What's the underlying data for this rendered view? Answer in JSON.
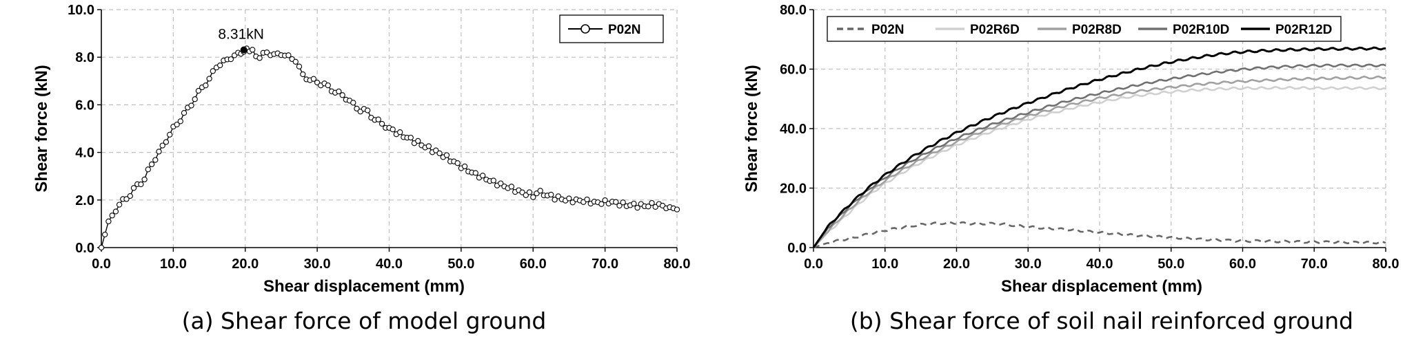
{
  "chart_data": [
    {
      "type": "line",
      "caption": "(a) Shear force of model ground",
      "xlabel": "Shear displacement (mm)",
      "ylabel": "Shear force (kN)",
      "xlim": [
        0,
        80
      ],
      "ylim": [
        0,
        10
      ],
      "xticks": [
        "0.0",
        "10.0",
        "20.0",
        "30.0",
        "40.0",
        "50.0",
        "60.0",
        "70.0",
        "80.0"
      ],
      "yticks": [
        "0.0",
        "2.0",
        "4.0",
        "6.0",
        "8.0",
        "10.0"
      ],
      "grid": true,
      "legend_position": "top-right",
      "annotation": {
        "text": "8.31kN",
        "x": 19.8,
        "y": 8.31
      },
      "series": [
        {
          "name": "P02N",
          "color": "#000000",
          "marker": "open-circle",
          "x": [
            0.0,
            0.5,
            1.0,
            2.0,
            3.0,
            4.0,
            5.0,
            6.0,
            7.0,
            8.0,
            9.0,
            10.0,
            11.0,
            12.0,
            13.0,
            14.0,
            15.0,
            16.0,
            17.0,
            18.0,
            19.0,
            19.8,
            21.0,
            22.0,
            23.0,
            24.0,
            25.0,
            26.0,
            27.0,
            28.0,
            29.0,
            30.0,
            31.0,
            32.0,
            33.0,
            34.0,
            35.0,
            36.0,
            37.0,
            38.0,
            39.0,
            40.0,
            42.0,
            44.0,
            46.0,
            48.0,
            50.0,
            52.0,
            54.0,
            56.0,
            58.0,
            60.0,
            61.0,
            63.0,
            65.0,
            67.0,
            69.0,
            71.0,
            73.0,
            75.0,
            77.0,
            79.0,
            80.0
          ],
          "y": [
            0.0,
            0.55,
            1.1,
            1.6,
            1.95,
            2.25,
            2.6,
            2.9,
            3.5,
            4.0,
            4.5,
            5.0,
            5.4,
            5.8,
            6.3,
            6.7,
            7.1,
            7.6,
            7.8,
            8.0,
            8.1,
            8.31,
            8.25,
            8.0,
            8.2,
            8.1,
            8.15,
            8.0,
            7.9,
            7.2,
            7.1,
            6.9,
            6.9,
            6.6,
            6.5,
            6.3,
            6.0,
            5.8,
            5.7,
            5.4,
            5.2,
            5.0,
            4.7,
            4.4,
            4.1,
            3.8,
            3.4,
            3.1,
            2.8,
            2.6,
            2.35,
            2.2,
            2.3,
            2.1,
            2.0,
            1.95,
            1.9,
            1.9,
            1.8,
            1.75,
            1.8,
            1.7,
            1.6
          ]
        }
      ]
    },
    {
      "type": "line",
      "caption": "(b) Shear force of soil nail reinforced ground",
      "xlabel": "Shear displacement (mm)",
      "ylabel": "Shear force (kN)",
      "xlim": [
        0,
        80
      ],
      "ylim": [
        0,
        80
      ],
      "xticks": [
        "0.0",
        "10.0",
        "20.0",
        "30.0",
        "40.0",
        "50.0",
        "60.0",
        "70.0",
        "80.0"
      ],
      "yticks": [
        "0.0",
        "20.0",
        "40.0",
        "60.0",
        "80.0"
      ],
      "grid": true,
      "legend_position": "top",
      "x": [
        0,
        2,
        4,
        6,
        8,
        10,
        12,
        14,
        16,
        18,
        20,
        22,
        24,
        26,
        28,
        30,
        32,
        34,
        36,
        38,
        40,
        42,
        44,
        46,
        48,
        50,
        52,
        54,
        56,
        58,
        60,
        62,
        64,
        66,
        68,
        70,
        72,
        74,
        76,
        78,
        80
      ],
      "series": [
        {
          "name": "P02N",
          "color": "#666666",
          "dash": "dashed",
          "values": [
            0.0,
            1.6,
            2.6,
            3.5,
            4.8,
            5.8,
            6.6,
            7.4,
            8.0,
            8.2,
            8.3,
            8.1,
            8.1,
            8.0,
            7.5,
            7.0,
            6.6,
            6.3,
            6.0,
            5.5,
            5.1,
            4.7,
            4.3,
            4.0,
            3.7,
            3.4,
            3.1,
            2.8,
            2.6,
            2.4,
            2.2,
            2.2,
            2.1,
            2.0,
            1.9,
            1.9,
            1.8,
            1.8,
            1.7,
            1.7,
            1.6
          ]
        },
        {
          "name": "P02R6D",
          "color": "#d0d0d0",
          "dash": "solid",
          "values": [
            0.0,
            5.0,
            9.5,
            14.0,
            18.0,
            21.5,
            24.5,
            27.3,
            29.8,
            32.2,
            34.4,
            36.4,
            38.2,
            39.9,
            41.5,
            43.0,
            44.4,
            45.6,
            46.8,
            47.9,
            48.9,
            49.8,
            50.6,
            51.3,
            51.9,
            52.4,
            52.8,
            53.1,
            53.3,
            53.5,
            53.6,
            53.6,
            53.7,
            53.7,
            53.7,
            53.6,
            53.6,
            53.6,
            53.6,
            53.6,
            53.5
          ]
        },
        {
          "name": "P02R8D",
          "color": "#a0a0a0",
          "dash": "solid",
          "values": [
            0.0,
            5.5,
            10.5,
            15.0,
            19.0,
            22.5,
            25.5,
            28.3,
            30.9,
            33.3,
            35.5,
            37.5,
            39.4,
            41.1,
            42.7,
            44.2,
            45.6,
            46.9,
            48.1,
            49.2,
            50.2,
            51.1,
            51.9,
            52.7,
            53.3,
            53.9,
            54.4,
            54.9,
            55.3,
            55.6,
            55.9,
            56.1,
            56.3,
            56.5,
            56.7,
            56.8,
            56.9,
            57.0,
            57.1,
            57.2,
            57.2
          ]
        },
        {
          "name": "P02R10D",
          "color": "#707070",
          "dash": "solid",
          "values": [
            0.0,
            6.5,
            11.5,
            16.0,
            20.0,
            23.5,
            26.7,
            29.5,
            32.1,
            34.5,
            36.7,
            38.7,
            40.6,
            42.3,
            43.9,
            45.4,
            46.9,
            48.3,
            49.6,
            50.8,
            51.9,
            53.0,
            54.0,
            55.0,
            55.9,
            56.7,
            57.5,
            58.2,
            58.8,
            59.4,
            59.9,
            60.3,
            60.6,
            60.8,
            61.0,
            61.1,
            61.2,
            61.2,
            61.2,
            61.2,
            61.2
          ]
        },
        {
          "name": "P02R12D",
          "color": "#000000",
          "dash": "solid",
          "values": [
            0.0,
            7.0,
            12.0,
            16.6,
            20.7,
            24.4,
            27.7,
            30.8,
            33.6,
            36.2,
            38.6,
            40.8,
            42.9,
            44.9,
            46.8,
            48.6,
            50.3,
            52.0,
            53.6,
            55.1,
            56.5,
            57.8,
            59.1,
            60.3,
            61.4,
            62.4,
            63.3,
            64.1,
            64.8,
            65.4,
            65.8,
            66.1,
            66.3,
            66.5,
            66.6,
            66.7,
            66.8,
            66.8,
            66.9,
            66.9,
            67.0
          ]
        }
      ]
    }
  ]
}
